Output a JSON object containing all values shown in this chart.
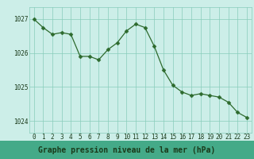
{
  "x": [
    0,
    1,
    2,
    3,
    4,
    5,
    6,
    7,
    8,
    9,
    10,
    11,
    12,
    13,
    14,
    15,
    16,
    17,
    18,
    19,
    20,
    21,
    22,
    23
  ],
  "y": [
    1027.0,
    1026.75,
    1026.55,
    1026.6,
    1026.55,
    1025.9,
    1025.9,
    1025.8,
    1026.1,
    1026.3,
    1026.65,
    1026.85,
    1026.75,
    1026.2,
    1025.5,
    1025.05,
    1024.85,
    1024.75,
    1024.8,
    1024.75,
    1024.7,
    1024.55,
    1024.25,
    1024.1
  ],
  "line_color": "#2d6a2d",
  "marker_color": "#2d6a2d",
  "bg_color": "#cceee8",
  "grid_color": "#88ccbb",
  "xlabel": "Graphe pression niveau de la mer (hPa)",
  "xlabel_color": "#1a3a1a",
  "xlabel_bg": "#44aa88",
  "tick_color": "#1a3a1a",
  "ylim": [
    1023.65,
    1027.35
  ],
  "yticks": [
    1024,
    1025,
    1026,
    1027
  ],
  "xticks": [
    0,
    1,
    2,
    3,
    4,
    5,
    6,
    7,
    8,
    9,
    10,
    11,
    12,
    13,
    14,
    15,
    16,
    17,
    18,
    19,
    20,
    21,
    22,
    23
  ],
  "tick_fontsize": 5.5,
  "xlabel_fontsize": 7.0,
  "marker_size": 2.5
}
